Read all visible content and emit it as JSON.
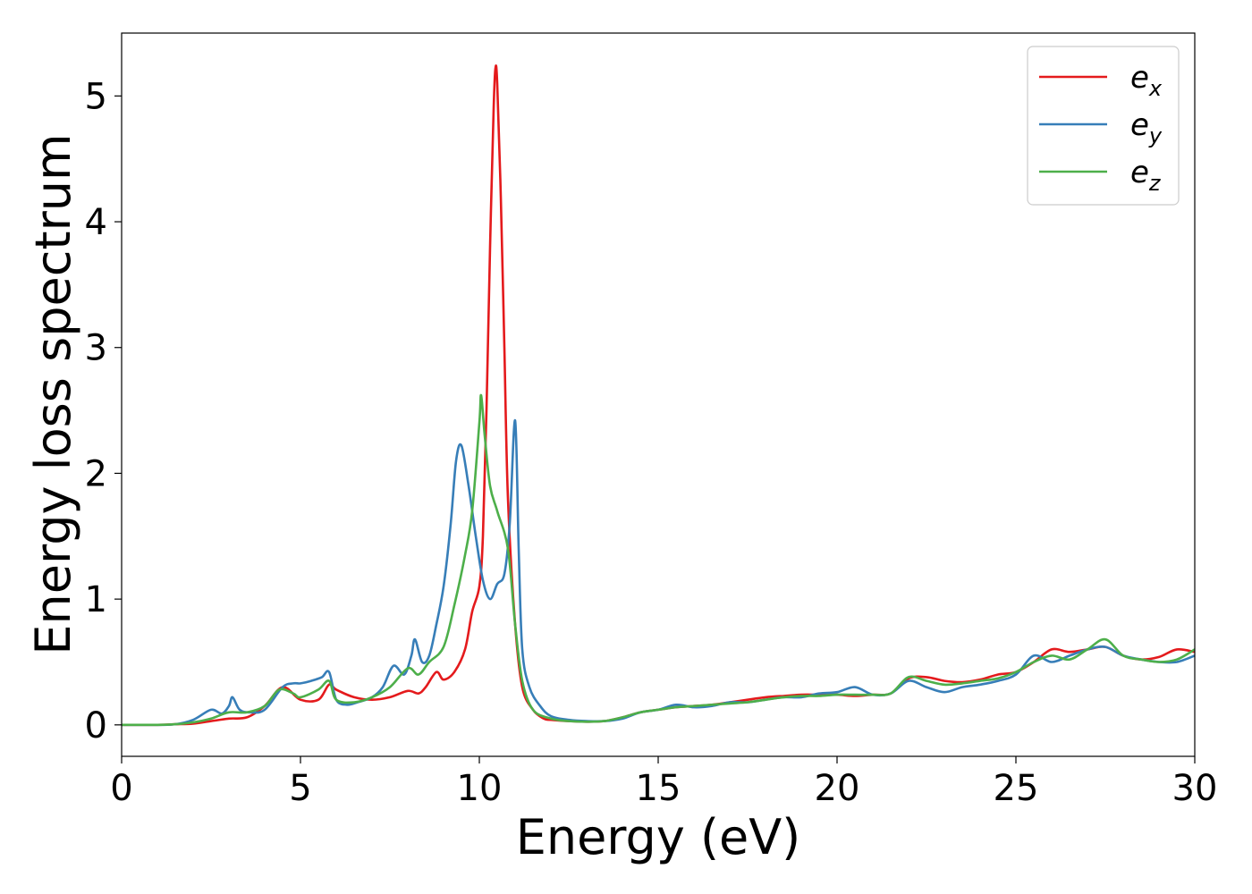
{
  "chart_data": {
    "type": "line",
    "title": "",
    "xlabel": "Energy (eV)",
    "ylabel": "Energy loss spectrum",
    "xlim": [
      0,
      30
    ],
    "ylim": [
      -0.25,
      5.5
    ],
    "xticks": [
      0,
      5,
      10,
      15,
      20,
      25,
      30
    ],
    "yticks": [
      0,
      1,
      2,
      3,
      4,
      5
    ],
    "grid": false,
    "legend_position": "top-right",
    "series": [
      {
        "name": "e",
        "sub": "x",
        "color": "#e41a1c",
        "x": [
          0,
          1,
          1.5,
          2,
          2.5,
          3,
          3.5,
          4,
          4.5,
          5,
          5.5,
          5.8,
          6,
          6.5,
          7,
          7.5,
          8,
          8.3,
          8.5,
          8.8,
          9,
          9.3,
          9.6,
          9.8,
          10,
          10.1,
          10.2,
          10.3,
          10.4,
          10.45,
          10.5,
          10.6,
          10.7,
          10.8,
          11,
          11.2,
          11.5,
          11.8,
          12,
          12.5,
          13,
          13.5,
          14,
          14.5,
          15,
          15.5,
          16,
          16.5,
          17,
          17.5,
          18,
          18.5,
          19,
          19.5,
          20,
          20.5,
          21,
          21.5,
          22,
          22.5,
          23,
          23.5,
          24,
          24.5,
          25,
          25.5,
          26,
          26.5,
          27,
          27.5,
          28,
          28.5,
          29,
          29.5,
          30
        ],
        "y": [
          0,
          0,
          0.005,
          0.01,
          0.03,
          0.05,
          0.06,
          0.15,
          0.3,
          0.2,
          0.2,
          0.32,
          0.28,
          0.22,
          0.2,
          0.22,
          0.27,
          0.25,
          0.3,
          0.42,
          0.36,
          0.42,
          0.6,
          0.9,
          1.1,
          1.5,
          2.5,
          3.8,
          4.9,
          5.22,
          5.1,
          4.2,
          3.0,
          1.8,
          0.8,
          0.3,
          0.12,
          0.05,
          0.04,
          0.03,
          0.025,
          0.03,
          0.06,
          0.1,
          0.12,
          0.14,
          0.15,
          0.16,
          0.18,
          0.2,
          0.22,
          0.23,
          0.24,
          0.24,
          0.24,
          0.23,
          0.24,
          0.25,
          0.37,
          0.38,
          0.35,
          0.34,
          0.36,
          0.4,
          0.42,
          0.5,
          0.6,
          0.58,
          0.6,
          0.62,
          0.55,
          0.52,
          0.54,
          0.6,
          0.58
        ]
      },
      {
        "name": "e",
        "sub": "y",
        "color": "#377eb8",
        "x": [
          0,
          1,
          1.5,
          2,
          2.5,
          2.8,
          3,
          3.1,
          3.3,
          3.6,
          4,
          4.5,
          4.8,
          5,
          5.3,
          5.6,
          5.8,
          6,
          6.3,
          6.6,
          7,
          7.3,
          7.6,
          7.9,
          8.1,
          8.2,
          8.4,
          8.6,
          8.8,
          9,
          9.2,
          9.35,
          9.5,
          9.7,
          9.9,
          10.1,
          10.3,
          10.5,
          10.7,
          10.85,
          11,
          11.1,
          11.2,
          11.4,
          11.7,
          12,
          12.5,
          13,
          13.5,
          14,
          14.5,
          15,
          15.5,
          16,
          16.5,
          17,
          17.5,
          18,
          18.5,
          19,
          19.5,
          20,
          20.5,
          21,
          21.5,
          22,
          22.5,
          23,
          23.5,
          24,
          24.5,
          25,
          25.5,
          26,
          26.5,
          27,
          27.5,
          28,
          28.5,
          29,
          29.5,
          30
        ],
        "y": [
          0,
          0,
          0.005,
          0.04,
          0.12,
          0.09,
          0.15,
          0.22,
          0.12,
          0.1,
          0.12,
          0.3,
          0.33,
          0.33,
          0.35,
          0.38,
          0.42,
          0.2,
          0.16,
          0.18,
          0.22,
          0.3,
          0.47,
          0.4,
          0.55,
          0.68,
          0.5,
          0.55,
          0.8,
          1.1,
          1.6,
          2.1,
          2.22,
          1.9,
          1.5,
          1.15,
          1.0,
          1.12,
          1.2,
          1.6,
          2.42,
          1.4,
          0.6,
          0.3,
          0.15,
          0.07,
          0.04,
          0.03,
          0.03,
          0.05,
          0.1,
          0.12,
          0.16,
          0.14,
          0.15,
          0.18,
          0.18,
          0.2,
          0.22,
          0.22,
          0.25,
          0.26,
          0.3,
          0.24,
          0.25,
          0.35,
          0.3,
          0.26,
          0.3,
          0.32,
          0.35,
          0.4,
          0.55,
          0.5,
          0.55,
          0.6,
          0.62,
          0.55,
          0.52,
          0.5,
          0.5,
          0.55
        ]
      },
      {
        "name": "e",
        "sub": "z",
        "color": "#4daf4a",
        "x": [
          0,
          1,
          1.5,
          2,
          2.5,
          3,
          3.5,
          4,
          4.4,
          4.8,
          5,
          5.5,
          5.8,
          6,
          6.5,
          7,
          7.5,
          8,
          8.3,
          8.6,
          9,
          9.3,
          9.6,
          9.8,
          10,
          10.05,
          10.15,
          10.3,
          10.5,
          10.8,
          11,
          11.2,
          11.5,
          12,
          12.5,
          13,
          13.5,
          14,
          14.5,
          15,
          15.5,
          16,
          16.5,
          17,
          17.5,
          18,
          18.5,
          19,
          19.5,
          20,
          20.5,
          21,
          21.5,
          22,
          22.5,
          23,
          23.5,
          24,
          24.5,
          25,
          25.5,
          26,
          26.5,
          27,
          27.5,
          28,
          28.5,
          29,
          29.5,
          30
        ],
        "y": [
          0,
          0,
          0.005,
          0.02,
          0.05,
          0.1,
          0.1,
          0.15,
          0.28,
          0.25,
          0.22,
          0.28,
          0.35,
          0.2,
          0.18,
          0.22,
          0.3,
          0.45,
          0.4,
          0.5,
          0.62,
          0.95,
          1.35,
          1.7,
          2.4,
          2.62,
          2.3,
          1.9,
          1.7,
          1.4,
          0.8,
          0.35,
          0.12,
          0.05,
          0.03,
          0.025,
          0.03,
          0.06,
          0.1,
          0.12,
          0.14,
          0.15,
          0.16,
          0.17,
          0.18,
          0.2,
          0.22,
          0.23,
          0.23,
          0.24,
          0.24,
          0.24,
          0.25,
          0.38,
          0.35,
          0.32,
          0.33,
          0.35,
          0.37,
          0.42,
          0.5,
          0.55,
          0.52,
          0.6,
          0.68,
          0.55,
          0.52,
          0.5,
          0.52,
          0.6
        ]
      }
    ]
  }
}
